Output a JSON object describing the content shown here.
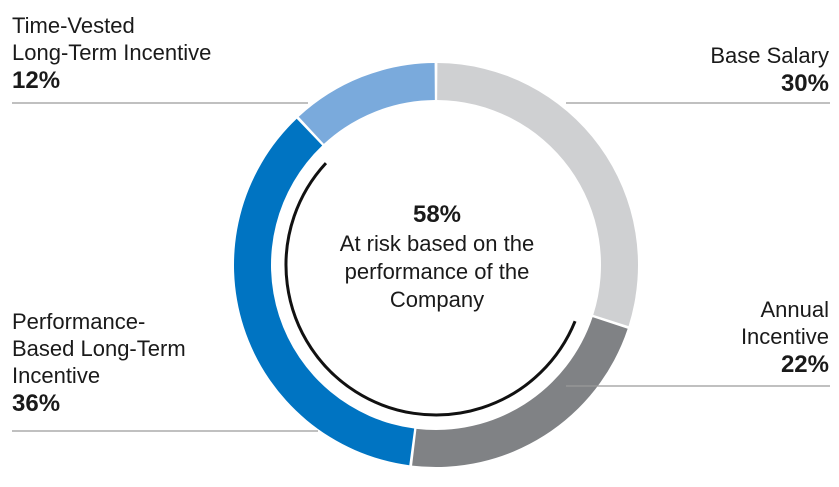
{
  "chart_data": {
    "type": "pie",
    "variant": "donut",
    "slices": [
      {
        "label": "Base Salary",
        "value": 30,
        "pct": "30%",
        "color": "#cfd0d2"
      },
      {
        "label": "Annual Incentive",
        "value": 22,
        "pct": "22%",
        "color": "#808285"
      },
      {
        "label": "Performance-Based Long-Term Incentive",
        "value": 36,
        "pct": "36%",
        "color": "#0074c2"
      },
      {
        "label": "Time-Vested Long-Term Incentive",
        "value": 12,
        "pct": "12%",
        "color": "#7aaadc"
      }
    ],
    "at_risk_value": 58,
    "center": {
      "value": "58%",
      "lines": [
        "At risk based on the",
        "performance of the",
        "Company"
      ]
    }
  },
  "labels": {
    "base_salary": {
      "lines": [
        "Base Salary"
      ],
      "pct": "30%"
    },
    "annual_incentive": {
      "lines": [
        "Annual",
        "Incentive"
      ],
      "pct": "22%"
    },
    "performance_based": {
      "lines": [
        "Performance-",
        "Based Long-Term",
        "Incentive"
      ],
      "pct": "36%"
    },
    "time_vested": {
      "lines": [
        "Time-Vested",
        "Long-Term Incentive"
      ],
      "pct": "12%"
    }
  },
  "colors": {
    "leader_line": "#9a9a9a",
    "at_risk_arc": "#111111"
  }
}
